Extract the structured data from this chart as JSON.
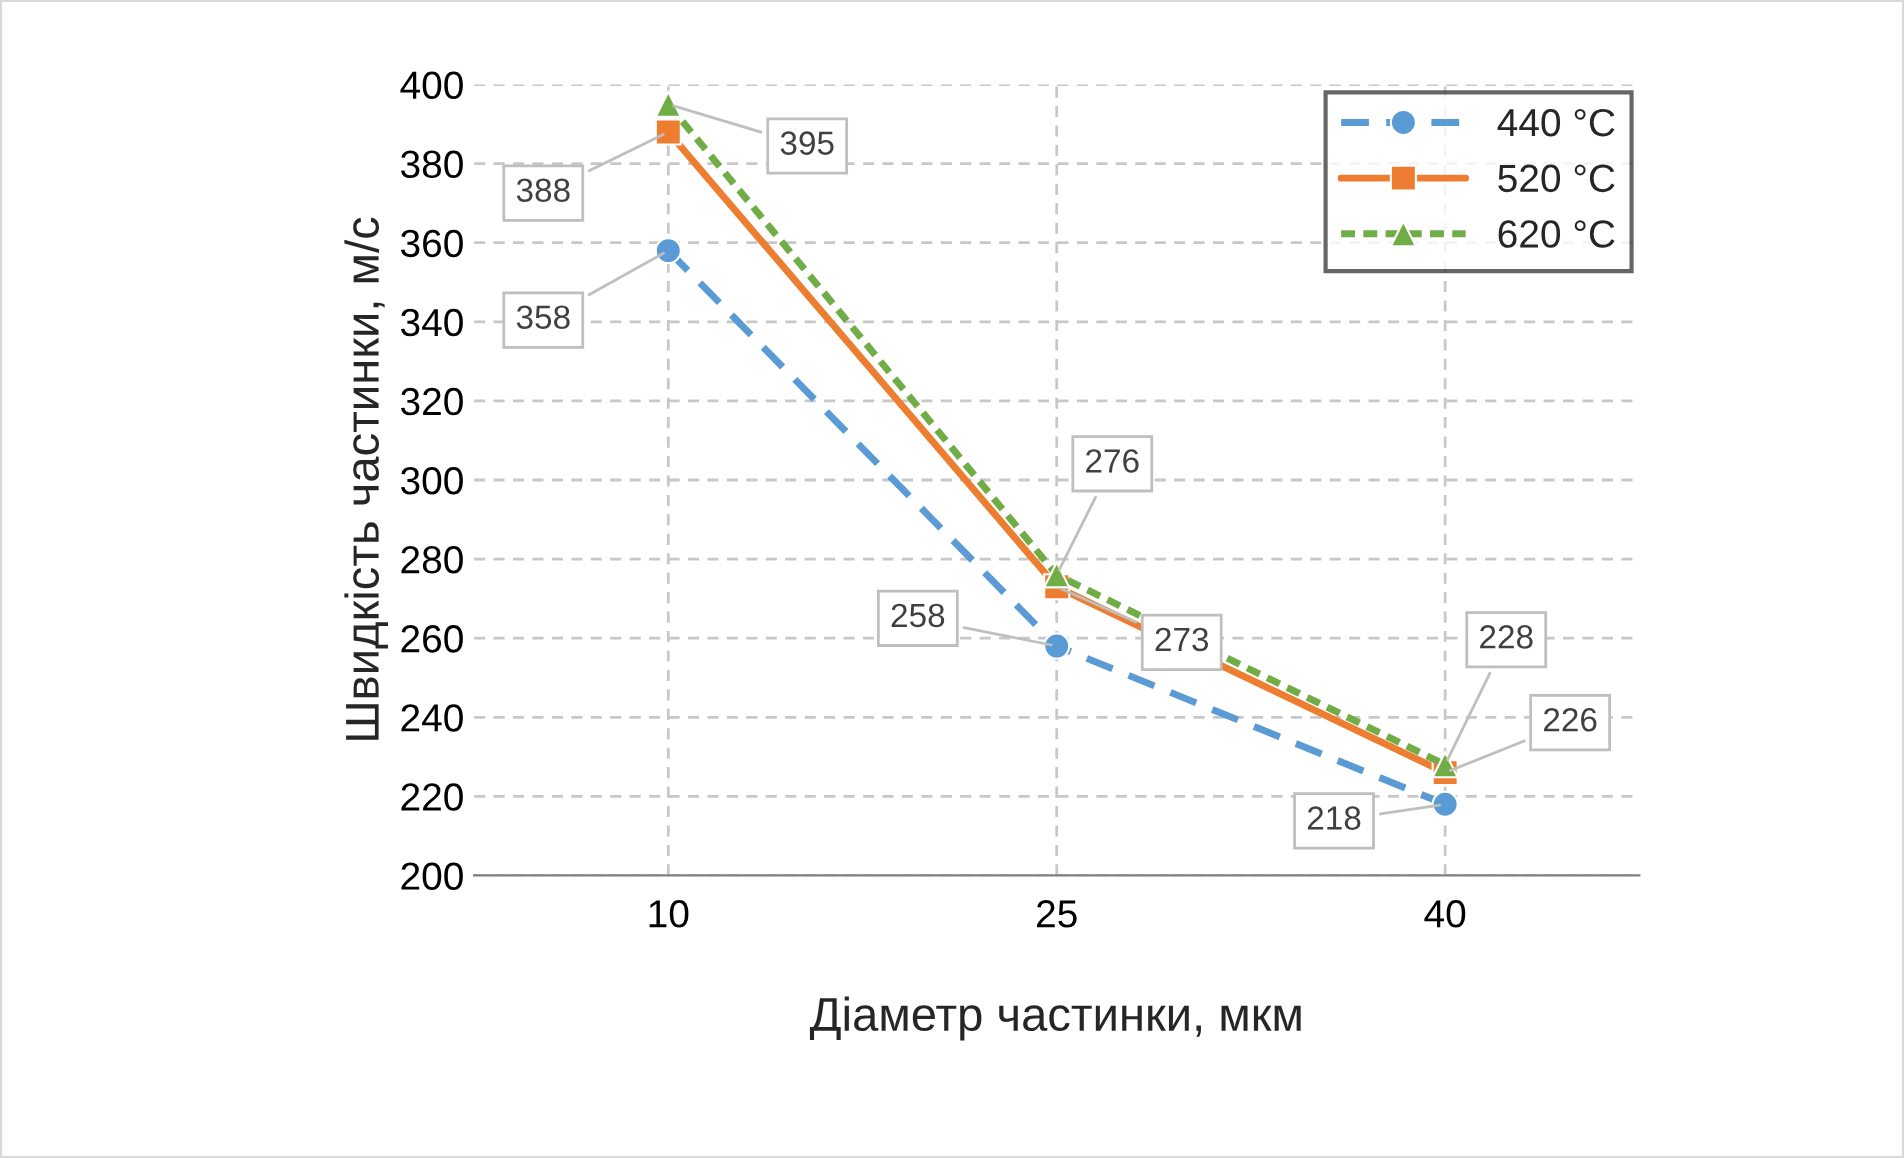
{
  "chart_data": {
    "type": "line",
    "xlabel": "Діаметр частинки, мкм",
    "ylabel": "Швидкість частинки, м/с",
    "categories": [
      "10",
      "25",
      "40"
    ],
    "series": [
      {
        "name": "440 °C",
        "color": "#5b9bd5",
        "values": [
          358,
          258,
          218
        ],
        "marker": "circle",
        "line_style": "dashed"
      },
      {
        "name": "520 °C",
        "color": "#ed7d31",
        "values": [
          388,
          273,
          226
        ],
        "marker": "square",
        "line_style": "solid"
      },
      {
        "name": "620 °C",
        "color": "#70ad47",
        "values": [
          395,
          276,
          228
        ],
        "marker": "triangle",
        "line_style": "dotted"
      }
    ],
    "ylim": [
      200,
      400
    ],
    "yticks": [
      200,
      220,
      240,
      260,
      280,
      300,
      320,
      340,
      360,
      380,
      400
    ],
    "grid": true,
    "legend": "top right",
    "data_labels": true
  }
}
